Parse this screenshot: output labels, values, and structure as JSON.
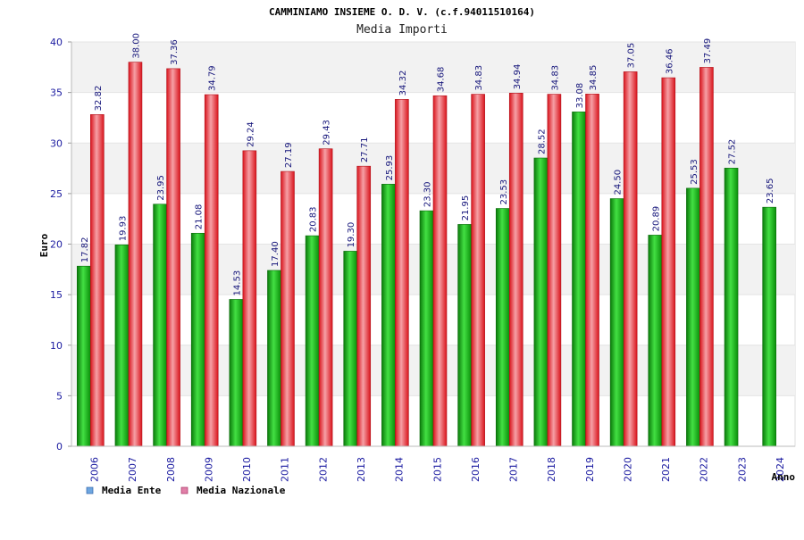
{
  "chart_data": {
    "type": "bar",
    "title": "CAMMINIAMO INSIEME O. D. V. (c.f.94011510164)",
    "subtitle": "Media Importi",
    "ylabel": "Euro",
    "xlabel": "Anno",
    "ylim": [
      0,
      40
    ],
    "yticks": [
      0,
      5,
      10,
      15,
      20,
      25,
      30,
      35,
      40
    ],
    "grid": true,
    "legend_position": "bottom-left",
    "categories": [
      "2006",
      "2007",
      "2008",
      "2009",
      "2010",
      "2011",
      "2012",
      "2013",
      "2014",
      "2015",
      "2016",
      "2017",
      "2018",
      "2019",
      "2020",
      "2021",
      "2022",
      "2023",
      "2024"
    ],
    "series": [
      {
        "name": "Media Ente",
        "legend_color": "#6ea6e0",
        "bar_color": "#1fb51f",
        "labels": [
          "17.82",
          "19.93",
          "23.95",
          "21.08",
          "14.53",
          "17.40",
          "20.83",
          "19.30",
          "25.93",
          "23.30",
          "21.95",
          "23.53",
          "28.52",
          "33.08",
          "24.50",
          "20.89",
          "25.53",
          "27.52",
          "23.65"
        ],
        "values": [
          17.82,
          19.93,
          23.95,
          21.08,
          14.53,
          17.4,
          20.83,
          19.3,
          25.93,
          23.3,
          21.95,
          23.53,
          28.52,
          33.08,
          24.5,
          20.89,
          25.53,
          27.52,
          23.65
        ]
      },
      {
        "name": "Media Nazionale",
        "legend_color": "#e080a8",
        "bar_color": "#e8262e",
        "labels": [
          "32.82",
          "38.00",
          "37.36",
          "34.79",
          "29.24",
          "27.19",
          "29.43",
          "27.71",
          "34.32",
          "34.68",
          "34.83",
          "34.94",
          "34.83",
          "34.85",
          "37.05",
          "36.46",
          "37.49",
          null,
          null
        ],
        "values": [
          32.82,
          38.0,
          37.36,
          34.79,
          29.24,
          27.19,
          29.43,
          27.71,
          34.32,
          34.68,
          34.83,
          34.94,
          34.83,
          34.85,
          37.05,
          36.46,
          37.49,
          null,
          null
        ]
      }
    ]
  }
}
